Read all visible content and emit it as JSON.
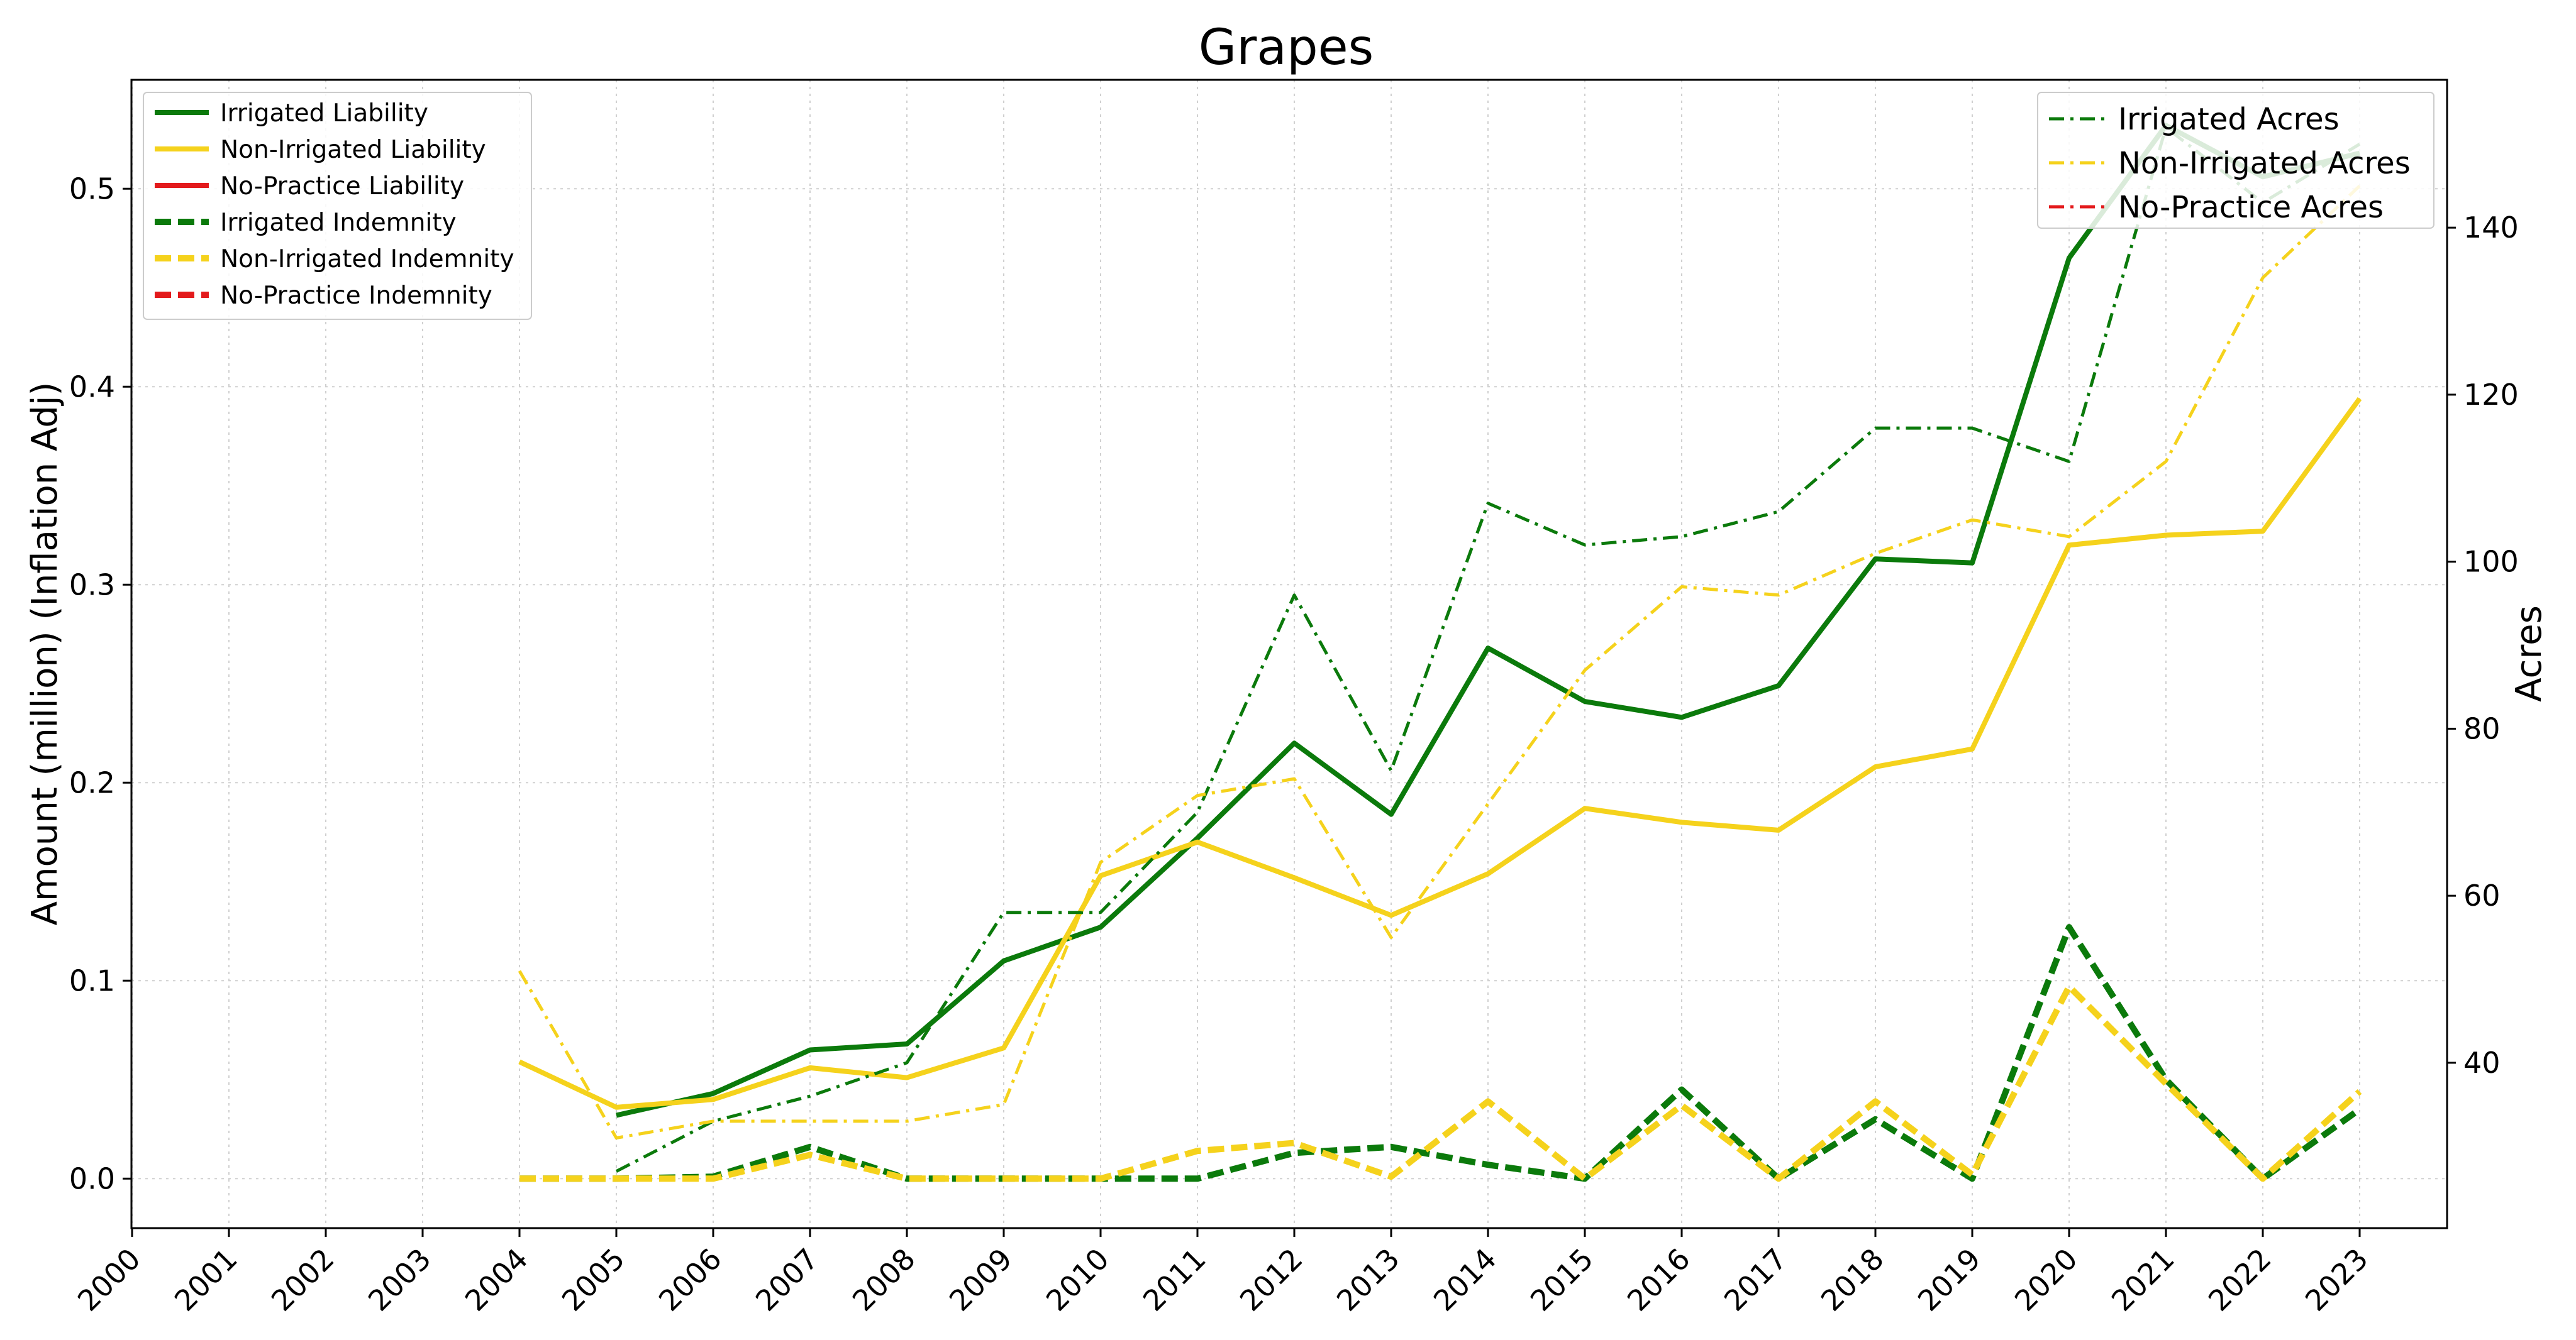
{
  "chart_data": {
    "type": "line",
    "title": "Grapes",
    "xlabel": "",
    "ylabel": "Amount (million) (Inflation Adj)",
    "y2label": "Acres",
    "x": [
      "2000",
      "2001",
      "2002",
      "2003",
      "2004",
      "2005",
      "2006",
      "2007",
      "2008",
      "2009",
      "2010",
      "2011",
      "2012",
      "2013",
      "2014",
      "2015",
      "2016",
      "2017",
      "2018",
      "2019",
      "2020",
      "2021",
      "2022",
      "2023"
    ],
    "ylim": [
      -0.025,
      0.555
    ],
    "y2lim": [
      20.2,
      157.7
    ],
    "yticks": [
      "0.0",
      "0.1",
      "0.2",
      "0.3",
      "0.4",
      "0.5"
    ],
    "y2ticks": [
      "40",
      "60",
      "80",
      "100",
      "120",
      "140"
    ],
    "grid": true,
    "legend_left_position": "upper-left",
    "legend_right_position": "upper-right",
    "colors": {
      "irrigated": "#0b7a0b",
      "non_irrigated": "#f5d21c",
      "no_practice": "#e31a1c"
    },
    "series": [
      {
        "name": "Irrigated Liability",
        "axis": "left",
        "color": "#0b7a0b",
        "style": "solid",
        "values": [
          null,
          null,
          null,
          null,
          null,
          0.032,
          0.043,
          0.065,
          0.068,
          0.11,
          0.127,
          0.172,
          0.22,
          0.184,
          0.268,
          0.241,
          0.233,
          0.249,
          0.313,
          0.311,
          0.465,
          0.532,
          0.506,
          0.518
        ]
      },
      {
        "name": "Non-Irrigated Liability",
        "axis": "left",
        "color": "#f5d21c",
        "style": "solid",
        "values": [
          null,
          null,
          null,
          null,
          0.059,
          0.036,
          0.04,
          0.056,
          0.051,
          0.066,
          0.153,
          0.17,
          0.152,
          0.133,
          0.154,
          0.187,
          0.18,
          0.176,
          0.208,
          0.217,
          0.32,
          0.325,
          0.327,
          0.394
        ]
      },
      {
        "name": "No-Practice Liability",
        "axis": "left",
        "color": "#e31a1c",
        "style": "solid",
        "values": [
          null,
          null,
          null,
          null,
          null,
          null,
          null,
          null,
          null,
          null,
          null,
          null,
          null,
          null,
          null,
          null,
          null,
          null,
          null,
          null,
          null,
          null,
          null,
          null
        ]
      },
      {
        "name": "Irrigated Indemnity",
        "axis": "left",
        "color": "#0b7a0b",
        "style": "dashed",
        "values": [
          null,
          null,
          null,
          null,
          0.0,
          0.0,
          0.001,
          0.016,
          0.0,
          0.0,
          0.0,
          0.0,
          0.013,
          0.016,
          0.007,
          0.0,
          0.045,
          0.0,
          0.03,
          0.0,
          0.127,
          0.05,
          0.0,
          0.035
        ]
      },
      {
        "name": "Non-Irrigated Indemnity",
        "axis": "left",
        "color": "#f5d21c",
        "style": "dashed",
        "values": [
          null,
          null,
          null,
          null,
          0.0,
          0.0,
          0.0,
          0.012,
          0.0,
          0.0,
          0.0,
          0.014,
          0.018,
          0.001,
          0.039,
          0.0,
          0.037,
          0.0,
          0.039,
          0.002,
          0.097,
          0.048,
          0.0,
          0.044
        ]
      },
      {
        "name": "No-Practice Indemnity",
        "axis": "left",
        "color": "#e31a1c",
        "style": "dashed",
        "values": [
          null,
          null,
          null,
          null,
          null,
          null,
          null,
          null,
          null,
          null,
          null,
          null,
          null,
          null,
          null,
          null,
          null,
          null,
          null,
          null,
          null,
          null,
          null,
          null
        ]
      },
      {
        "name": "Irrigated Acres",
        "axis": "right",
        "color": "#0b7a0b",
        "style": "dashdot",
        "values": [
          null,
          null,
          null,
          null,
          null,
          27,
          33,
          36,
          40,
          58,
          58,
          70,
          96,
          75,
          107,
          102,
          103,
          106,
          116,
          116,
          112,
          152,
          143,
          150
        ]
      },
      {
        "name": "Non-Irrigated Acres",
        "axis": "right",
        "color": "#f5d21c",
        "style": "dashdot",
        "values": [
          null,
          null,
          null,
          null,
          51,
          31,
          33,
          33,
          33,
          35,
          64,
          72,
          74,
          55,
          71,
          87,
          97,
          96,
          101,
          105,
          103,
          112,
          134,
          145
        ]
      },
      {
        "name": "No-Practice Acres",
        "axis": "right",
        "color": "#e31a1c",
        "style": "dashdot",
        "values": [
          null,
          null,
          null,
          null,
          null,
          null,
          null,
          null,
          null,
          null,
          null,
          null,
          null,
          null,
          null,
          null,
          null,
          null,
          null,
          null,
          null,
          null,
          null,
          null
        ]
      }
    ]
  }
}
